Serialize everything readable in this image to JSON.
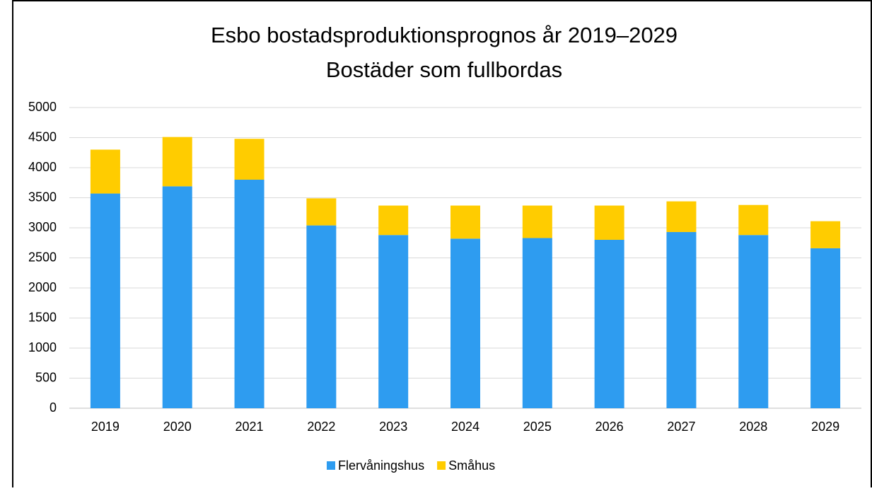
{
  "chart_data": {
    "type": "stacked_bar",
    "title": "Esbo bostadsproduktionsprognos år 2019–2029",
    "subtitle": "Bostäder som fullbordas",
    "categories": [
      "2019",
      "2020",
      "2021",
      "2022",
      "2023",
      "2024",
      "2025",
      "2026",
      "2027",
      "2028",
      "2029"
    ],
    "series": [
      {
        "name": "Flervåningshus",
        "color": "#2e9cf0",
        "values": [
          3570,
          3690,
          3800,
          3040,
          2880,
          2820,
          2830,
          2800,
          2930,
          2880,
          2660
        ]
      },
      {
        "name": "Småhus",
        "color": "#ffcc00",
        "values": [
          730,
          820,
          680,
          450,
          490,
          550,
          540,
          570,
          510,
          500,
          450
        ]
      }
    ],
    "ylim": [
      0,
      5000
    ],
    "yticks": [
      0,
      500,
      1000,
      1500,
      2000,
      2500,
      3000,
      3500,
      4000,
      4500,
      5000
    ],
    "grid": true,
    "legend": "bottom"
  }
}
